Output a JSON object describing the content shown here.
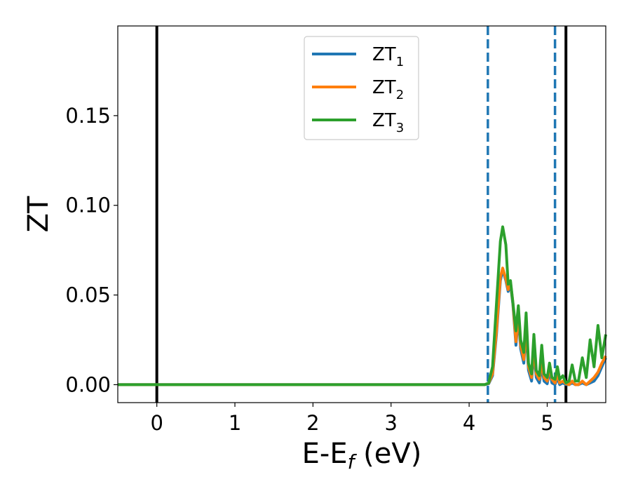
{
  "chart_data": {
    "type": "line",
    "title": "",
    "xlabel": {
      "main": "E-E",
      "sub": "f",
      "unit": " (eV)"
    },
    "ylabel": "ZT",
    "xlim": [
      -0.5,
      5.75
    ],
    "ylim": [
      -0.01,
      0.2
    ],
    "xticks": [
      0,
      1,
      2,
      3,
      4,
      5
    ],
    "yticks": [
      0.0,
      0.05,
      0.1,
      0.15
    ],
    "ytick_labels": [
      "0.00",
      "0.05",
      "0.10",
      "0.15"
    ],
    "grid": false,
    "legend_position": "upper center",
    "vlines": [
      {
        "x": 0.0,
        "style": "solid",
        "color": "#000000"
      },
      {
        "x": 5.24,
        "style": "solid",
        "color": "#000000"
      },
      {
        "x": 4.24,
        "style": "dashed",
        "color": "#1f77b4"
      },
      {
        "x": 5.1,
        "style": "dashed",
        "color": "#1f77b4"
      }
    ],
    "series": [
      {
        "name": "ZT",
        "subscript": "1",
        "color": "#1f77b4",
        "x": [
          -0.5,
          0,
          1,
          2,
          3,
          4,
          4.2,
          4.25,
          4.3,
          4.35,
          4.4,
          4.43,
          4.47,
          4.5,
          4.53,
          4.56,
          4.6,
          4.63,
          4.66,
          4.7,
          4.73,
          4.76,
          4.8,
          4.83,
          4.86,
          4.9,
          4.93,
          4.96,
          5.0,
          5.03,
          5.06,
          5.1,
          5.13,
          5.16,
          5.2,
          5.24,
          5.28,
          5.32,
          5.36,
          5.4,
          5.45,
          5.5,
          5.55,
          5.6,
          5.65,
          5.7,
          5.75
        ],
        "y": [
          0,
          0,
          0,
          0,
          0,
          0,
          0.0,
          0.0005,
          0.005,
          0.028,
          0.058,
          0.064,
          0.058,
          0.052,
          0.056,
          0.045,
          0.022,
          0.038,
          0.02,
          0.012,
          0.03,
          0.008,
          0.002,
          0.018,
          0.004,
          0.001,
          0.01,
          0.002,
          0.0005,
          0.008,
          0.001,
          0.0,
          0.004,
          0.0,
          0.001,
          0.0,
          0.0,
          0.001,
          0.0,
          0.0,
          0.001,
          0.0,
          0.001,
          0.002,
          0.005,
          0.01,
          0.015
        ]
      },
      {
        "name": "ZT",
        "subscript": "2",
        "color": "#ff7f0e",
        "x": [
          -0.5,
          0,
          1,
          2,
          3,
          4,
          4.2,
          4.25,
          4.3,
          4.35,
          4.4,
          4.43,
          4.47,
          4.5,
          4.53,
          4.56,
          4.6,
          4.63,
          4.66,
          4.7,
          4.73,
          4.76,
          4.8,
          4.83,
          4.86,
          4.9,
          4.93,
          4.96,
          5.0,
          5.03,
          5.06,
          5.1,
          5.13,
          5.16,
          5.2,
          5.24,
          5.28,
          5.32,
          5.36,
          5.4,
          5.45,
          5.5,
          5.55,
          5.6,
          5.65,
          5.7,
          5.75
        ],
        "y": [
          0,
          0,
          0,
          0,
          0,
          0,
          0.0,
          0.0008,
          0.006,
          0.03,
          0.06,
          0.065,
          0.059,
          0.053,
          0.057,
          0.046,
          0.024,
          0.04,
          0.022,
          0.014,
          0.032,
          0.01,
          0.004,
          0.02,
          0.006,
          0.003,
          0.012,
          0.004,
          0.002,
          0.01,
          0.003,
          0.001,
          0.006,
          0.001,
          0.002,
          0.0005,
          0.0,
          0.002,
          0.0,
          0.0,
          0.002,
          0.0,
          0.002,
          0.004,
          0.007,
          0.012,
          0.016
        ]
      },
      {
        "name": "ZT",
        "subscript": "3",
        "color": "#2ca02c",
        "x": [
          -0.5,
          0,
          1,
          2,
          3,
          4,
          4.2,
          4.25,
          4.3,
          4.35,
          4.4,
          4.43,
          4.47,
          4.5,
          4.53,
          4.56,
          4.6,
          4.63,
          4.66,
          4.7,
          4.73,
          4.76,
          4.8,
          4.83,
          4.86,
          4.9,
          4.93,
          4.96,
          5.0,
          5.03,
          5.06,
          5.1,
          5.13,
          5.16,
          5.2,
          5.24,
          5.28,
          5.32,
          5.36,
          5.4,
          5.45,
          5.5,
          5.55,
          5.6,
          5.65,
          5.7,
          5.75
        ],
        "y": [
          0,
          0,
          0,
          0,
          0,
          0,
          0.0,
          0.001,
          0.01,
          0.045,
          0.08,
          0.088,
          0.078,
          0.056,
          0.058,
          0.046,
          0.03,
          0.044,
          0.025,
          0.018,
          0.04,
          0.012,
          0.006,
          0.028,
          0.008,
          0.005,
          0.022,
          0.006,
          0.004,
          0.012,
          0.004,
          0.003,
          0.01,
          0.003,
          0.005,
          0.001,
          0.002,
          0.011,
          0.002,
          0.002,
          0.015,
          0.004,
          0.025,
          0.01,
          0.033,
          0.015,
          0.028
        ]
      }
    ]
  }
}
